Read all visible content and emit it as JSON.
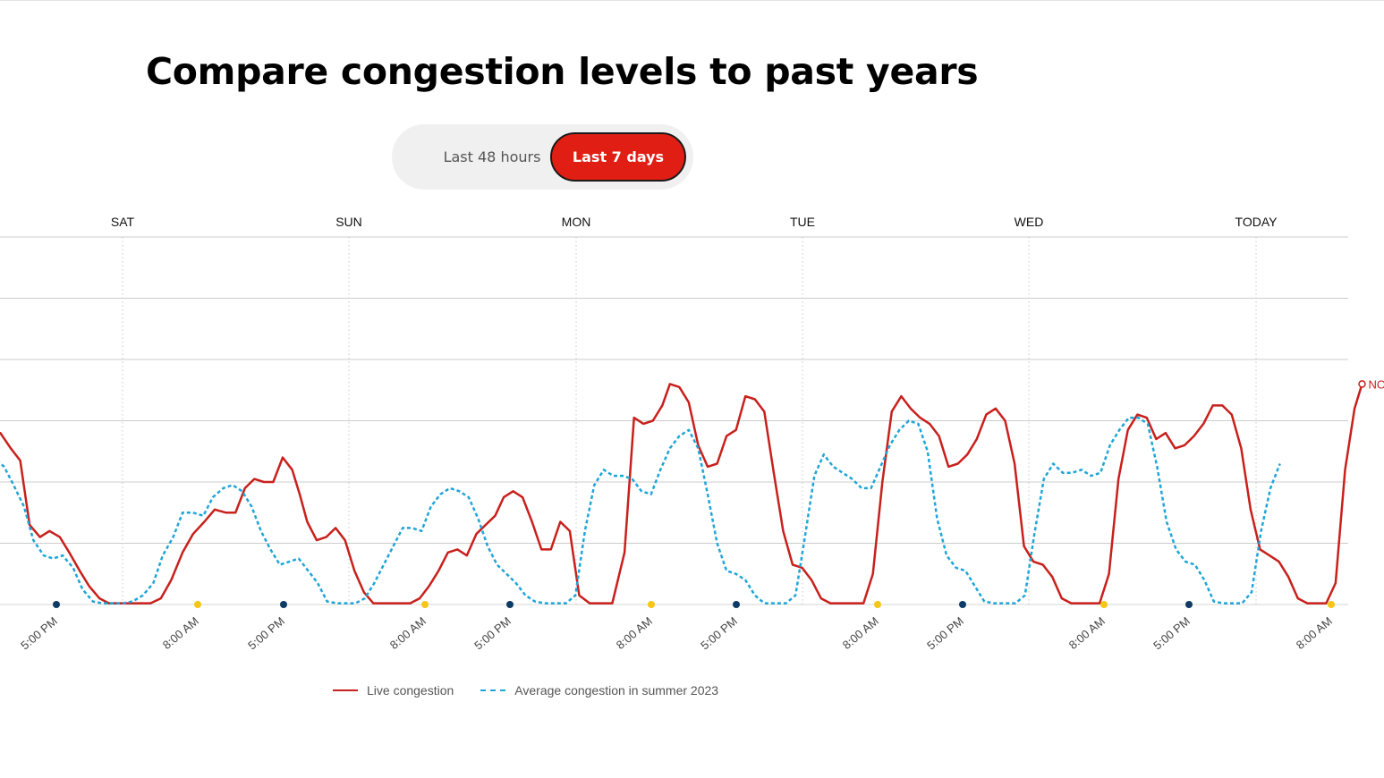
{
  "header": {
    "title": "Compare congestion levels to past years"
  },
  "toggle": {
    "option_48h": "Last 48 hours",
    "option_7d": "Last 7 days",
    "selected": "Last 7 days"
  },
  "colors": {
    "live": "#c8201c",
    "average": "#1ea5d8",
    "toggle_active": "#e11e14",
    "marker_evening": "#0d3b66",
    "marker_morning": "#f5c518",
    "grid": "#cccccc"
  },
  "chart_data": {
    "type": "line",
    "day_labels": [
      "SAT",
      "SUN",
      "MON",
      "TUE",
      "WED",
      "TODAY"
    ],
    "x_tick_labels": [
      "5:00 PM",
      "8:00 AM",
      "5:00 PM",
      "8:00 AM",
      "5:00 PM",
      "8:00 AM",
      "5:00 PM",
      "8:00 AM",
      "5:00 PM",
      "8:00 AM",
      "5:00 PM",
      "8:00 AM"
    ],
    "x_tick_markers": [
      "evening",
      "morning",
      "evening",
      "morning",
      "evening",
      "morning",
      "evening",
      "morning",
      "evening",
      "morning",
      "evening",
      "morning"
    ],
    "x_unit": "hours",
    "x_range": [
      -28.8,
      137.2
    ],
    "y_range": [
      0,
      6
    ],
    "grid_lines": 6,
    "now_label": "NOW",
    "series": [
      {
        "name": "Live congestion",
        "style": "solid",
        "points": [
          [
            -28.8,
            2.9
          ],
          [
            -27.5,
            2.9
          ],
          [
            -25.4,
            2.25
          ],
          [
            -24.3,
            2.4
          ],
          [
            -23.0,
            2.85
          ],
          [
            -21.9,
            2.8
          ],
          [
            -20.9,
            2.8
          ],
          [
            -19.8,
            2.55
          ],
          [
            -18.8,
            2.35
          ],
          [
            -17.8,
            1.3
          ],
          [
            -16.7,
            1.1
          ],
          [
            -15.7,
            1.2
          ],
          [
            -14.6,
            1.1
          ],
          [
            -13.6,
            0.85
          ],
          [
            -12.5,
            0.55
          ],
          [
            -11.5,
            0.3
          ],
          [
            -10.4,
            0.1
          ],
          [
            -9.4,
            0.02
          ],
          [
            -5.0,
            0.02
          ],
          [
            -3.9,
            0.1
          ],
          [
            -2.8,
            0.4
          ],
          [
            -1.6,
            0.85
          ],
          [
            -0.5,
            1.15
          ],
          [
            0.7,
            1.35
          ],
          [
            1.8,
            1.55
          ],
          [
            3.0,
            1.5
          ],
          [
            4.0,
            1.5
          ],
          [
            5.0,
            1.9
          ],
          [
            6.0,
            2.05
          ],
          [
            7.0,
            2.0
          ],
          [
            8.0,
            2.0
          ],
          [
            9.0,
            2.4
          ],
          [
            10.0,
            2.2
          ],
          [
            10.8,
            1.8
          ],
          [
            11.6,
            1.35
          ],
          [
            12.6,
            1.05
          ],
          [
            13.6,
            1.1
          ],
          [
            14.6,
            1.25
          ],
          [
            15.6,
            1.05
          ],
          [
            16.6,
            0.55
          ],
          [
            17.6,
            0.2
          ],
          [
            18.6,
            0.02
          ],
          [
            22.5,
            0.02
          ],
          [
            23.5,
            0.1
          ],
          [
            24.5,
            0.3
          ],
          [
            25.5,
            0.55
          ],
          [
            26.5,
            0.85
          ],
          [
            27.5,
            0.9
          ],
          [
            28.5,
            0.8
          ],
          [
            29.5,
            1.15
          ],
          [
            30.5,
            1.3
          ],
          [
            31.5,
            1.45
          ],
          [
            32.4,
            1.75
          ],
          [
            33.4,
            1.85
          ],
          [
            34.4,
            1.75
          ],
          [
            35.4,
            1.35
          ],
          [
            36.4,
            0.9
          ],
          [
            37.4,
            0.9
          ],
          [
            38.4,
            1.35
          ],
          [
            39.4,
            1.2
          ],
          [
            40.4,
            0.15
          ],
          [
            41.5,
            0.02
          ],
          [
            43.9,
            0.02
          ],
          [
            45.2,
            0.85
          ],
          [
            46.2,
            3.05
          ],
          [
            47.2,
            2.95
          ],
          [
            48.2,
            3.0
          ],
          [
            49.2,
            3.25
          ],
          [
            50.0,
            3.6
          ],
          [
            51.0,
            3.55
          ],
          [
            52.0,
            3.3
          ],
          [
            53.0,
            2.6
          ],
          [
            54.0,
            2.25
          ],
          [
            55.0,
            2.3
          ],
          [
            56.0,
            2.75
          ],
          [
            57.0,
            2.85
          ],
          [
            58.0,
            3.4
          ],
          [
            59.0,
            3.35
          ],
          [
            60.0,
            3.15
          ],
          [
            61.0,
            2.15
          ],
          [
            62.0,
            1.2
          ],
          [
            63.0,
            0.65
          ],
          [
            64.0,
            0.6
          ],
          [
            65.0,
            0.4
          ],
          [
            66.0,
            0.1
          ],
          [
            67.0,
            0.02
          ],
          [
            70.5,
            0.02
          ],
          [
            71.5,
            0.5
          ],
          [
            72.5,
            2.0
          ],
          [
            73.5,
            3.15
          ],
          [
            74.5,
            3.4
          ],
          [
            75.5,
            3.2
          ],
          [
            76.5,
            3.05
          ],
          [
            77.5,
            2.95
          ],
          [
            78.5,
            2.75
          ],
          [
            79.5,
            2.25
          ],
          [
            80.5,
            2.3
          ],
          [
            81.5,
            2.45
          ],
          [
            82.5,
            2.7
          ],
          [
            83.5,
            3.1
          ],
          [
            84.5,
            3.2
          ],
          [
            85.5,
            3.0
          ],
          [
            86.5,
            2.3
          ],
          [
            87.5,
            0.95
          ],
          [
            88.5,
            0.7
          ],
          [
            89.5,
            0.65
          ],
          [
            90.5,
            0.45
          ],
          [
            91.5,
            0.1
          ],
          [
            92.5,
            0.02
          ],
          [
            95.5,
            0.02
          ],
          [
            96.5,
            0.5
          ],
          [
            97.5,
            2.05
          ],
          [
            98.5,
            2.85
          ],
          [
            99.5,
            3.1
          ],
          [
            100.5,
            3.05
          ],
          [
            101.5,
            2.7
          ],
          [
            102.5,
            2.8
          ],
          [
            103.5,
            2.55
          ],
          [
            104.5,
            2.6
          ],
          [
            105.5,
            2.75
          ],
          [
            106.5,
            2.95
          ],
          [
            107.5,
            3.25
          ],
          [
            108.5,
            3.25
          ],
          [
            109.5,
            3.1
          ],
          [
            110.5,
            2.55
          ],
          [
            111.5,
            1.55
          ],
          [
            112.5,
            0.9
          ],
          [
            113.5,
            0.8
          ],
          [
            114.5,
            0.7
          ],
          [
            115.5,
            0.45
          ],
          [
            116.5,
            0.1
          ],
          [
            117.5,
            0.02
          ],
          [
            119.5,
            0.02
          ],
          [
            120.5,
            0.35
          ],
          [
            121.5,
            2.2
          ],
          [
            122.5,
            3.2
          ],
          [
            123.3,
            3.6
          ]
        ]
      },
      {
        "name": "Average congestion in summer 2023",
        "style": "dashed",
        "points": [
          [
            -28.8,
            2.05
          ],
          [
            -27.9,
            2.05
          ],
          [
            -26.8,
            1.9
          ],
          [
            -25.8,
            1.8
          ],
          [
            -24.7,
            2.05
          ],
          [
            -23.7,
            2.25
          ],
          [
            -22.6,
            2.35
          ],
          [
            -21.6,
            2.4
          ],
          [
            -20.5,
            2.25
          ],
          [
            -19.5,
            1.95
          ],
          [
            -18.4,
            1.6
          ],
          [
            -17.4,
            1.05
          ],
          [
            -16.3,
            0.8
          ],
          [
            -15.3,
            0.75
          ],
          [
            -14.3,
            0.8
          ],
          [
            -13.2,
            0.6
          ],
          [
            -12.2,
            0.25
          ],
          [
            -11.1,
            0.05
          ],
          [
            -10.1,
            0.02
          ],
          [
            -7.9,
            0.02
          ],
          [
            -6.9,
            0.05
          ],
          [
            -5.8,
            0.15
          ],
          [
            -4.7,
            0.35
          ],
          [
            -3.7,
            0.8
          ],
          [
            -2.6,
            1.1
          ],
          [
            -1.6,
            1.5
          ],
          [
            -0.5,
            1.5
          ],
          [
            0.6,
            1.45
          ],
          [
            1.6,
            1.75
          ],
          [
            2.7,
            1.9
          ],
          [
            3.7,
            1.95
          ],
          [
            4.7,
            1.85
          ],
          [
            5.7,
            1.6
          ],
          [
            6.7,
            1.2
          ],
          [
            7.7,
            0.9
          ],
          [
            8.7,
            0.65
          ],
          [
            9.7,
            0.7
          ],
          [
            10.7,
            0.75
          ],
          [
            11.7,
            0.55
          ],
          [
            12.7,
            0.35
          ],
          [
            13.7,
            0.05
          ],
          [
            14.7,
            0.02
          ],
          [
            16.7,
            0.02
          ],
          [
            17.7,
            0.1
          ],
          [
            18.7,
            0.35
          ],
          [
            19.7,
            0.65
          ],
          [
            20.7,
            0.95
          ],
          [
            21.7,
            1.25
          ],
          [
            22.7,
            1.25
          ],
          [
            23.7,
            1.2
          ],
          [
            24.7,
            1.6
          ],
          [
            25.7,
            1.8
          ],
          [
            26.7,
            1.9
          ],
          [
            27.7,
            1.85
          ],
          [
            28.7,
            1.75
          ],
          [
            29.7,
            1.4
          ],
          [
            30.7,
            0.95
          ],
          [
            31.7,
            0.65
          ],
          [
            32.7,
            0.5
          ],
          [
            33.7,
            0.35
          ],
          [
            34.7,
            0.15
          ],
          [
            35.7,
            0.05
          ],
          [
            36.7,
            0.02
          ],
          [
            39.0,
            0.02
          ],
          [
            40.0,
            0.15
          ],
          [
            41.0,
            1.2
          ],
          [
            42.0,
            1.95
          ],
          [
            43.0,
            2.2
          ],
          [
            44.0,
            2.1
          ],
          [
            45.0,
            2.1
          ],
          [
            46.0,
            2.05
          ],
          [
            47.0,
            1.85
          ],
          [
            48.0,
            1.8
          ],
          [
            49.0,
            2.2
          ],
          [
            50.0,
            2.55
          ],
          [
            51.0,
            2.75
          ],
          [
            52.0,
            2.85
          ],
          [
            53.0,
            2.55
          ],
          [
            54.0,
            1.8
          ],
          [
            55.0,
            1.0
          ],
          [
            56.0,
            0.55
          ],
          [
            57.0,
            0.5
          ],
          [
            58.0,
            0.4
          ],
          [
            59.0,
            0.15
          ],
          [
            60.0,
            0.02
          ],
          [
            62.3,
            0.02
          ],
          [
            63.3,
            0.15
          ],
          [
            64.3,
            1.1
          ],
          [
            65.3,
            2.1
          ],
          [
            66.3,
            2.45
          ],
          [
            67.3,
            2.25
          ],
          [
            68.3,
            2.15
          ],
          [
            69.3,
            2.05
          ],
          [
            70.3,
            1.9
          ],
          [
            71.3,
            1.9
          ],
          [
            72.3,
            2.25
          ],
          [
            73.3,
            2.6
          ],
          [
            74.3,
            2.85
          ],
          [
            75.3,
            3.0
          ],
          [
            76.3,
            2.95
          ],
          [
            77.3,
            2.5
          ],
          [
            78.3,
            1.4
          ],
          [
            79.3,
            0.8
          ],
          [
            80.3,
            0.6
          ],
          [
            81.3,
            0.55
          ],
          [
            82.3,
            0.3
          ],
          [
            83.3,
            0.05
          ],
          [
            84.3,
            0.02
          ],
          [
            86.6,
            0.02
          ],
          [
            87.6,
            0.15
          ],
          [
            88.6,
            1.15
          ],
          [
            89.6,
            2.05
          ],
          [
            90.6,
            2.3
          ],
          [
            91.6,
            2.15
          ],
          [
            92.6,
            2.15
          ],
          [
            93.6,
            2.2
          ],
          [
            94.6,
            2.1
          ],
          [
            95.6,
            2.15
          ],
          [
            96.6,
            2.6
          ],
          [
            97.6,
            2.85
          ],
          [
            98.6,
            3.05
          ],
          [
            99.6,
            3.05
          ],
          [
            100.6,
            2.95
          ],
          [
            101.6,
            2.25
          ],
          [
            102.6,
            1.35
          ],
          [
            103.6,
            0.9
          ],
          [
            104.6,
            0.7
          ],
          [
            105.6,
            0.65
          ],
          [
            106.6,
            0.4
          ],
          [
            107.6,
            0.05
          ],
          [
            108.6,
            0.02
          ],
          [
            110.6,
            0.02
          ],
          [
            111.6,
            0.2
          ],
          [
            112.6,
            1.2
          ],
          [
            113.6,
            1.9
          ],
          [
            114.6,
            2.3
          ]
        ]
      }
    ]
  }
}
